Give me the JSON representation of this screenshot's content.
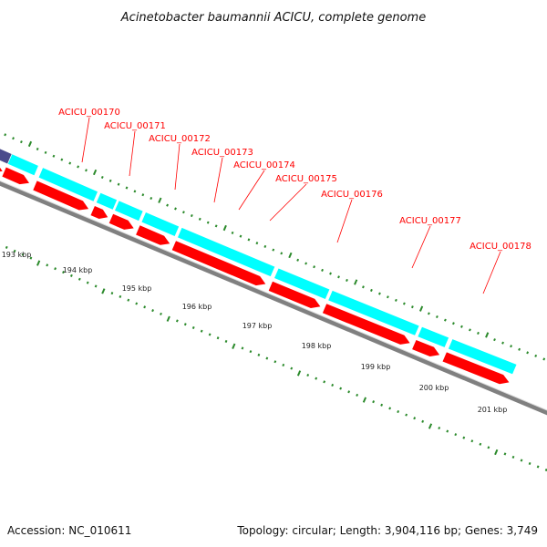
{
  "title": "Acinetobacter baumannii ACICU, complete genome",
  "footer": {
    "accession": "Accession: NC_010611",
    "summary": "Topology: circular; Length: 3,904,116 bp; Genes: 3,749"
  },
  "colors": {
    "backbone": "#808080",
    "cds": "#ff0000",
    "gene": "#00ffff",
    "gene_purple": "#4b4b8c",
    "cds_blue": "#0000ff",
    "tick": "#2b8a2b",
    "label": "#ff0000"
  },
  "scale_labels": [
    "193 kbp",
    "194 kbp",
    "195 kbp",
    "196 kbp",
    "197 kbp",
    "198 kbp",
    "199 kbp",
    "200 kbp",
    "201 kbp"
  ],
  "gene_labels": [
    "ACICU_00170",
    "ACICU_00171",
    "ACICU_00172",
    "ACICU_00173",
    "ACICU_00174",
    "ACICU_00175",
    "ACICU_00176",
    "ACICU_00177",
    "ACICU_00178"
  ]
}
